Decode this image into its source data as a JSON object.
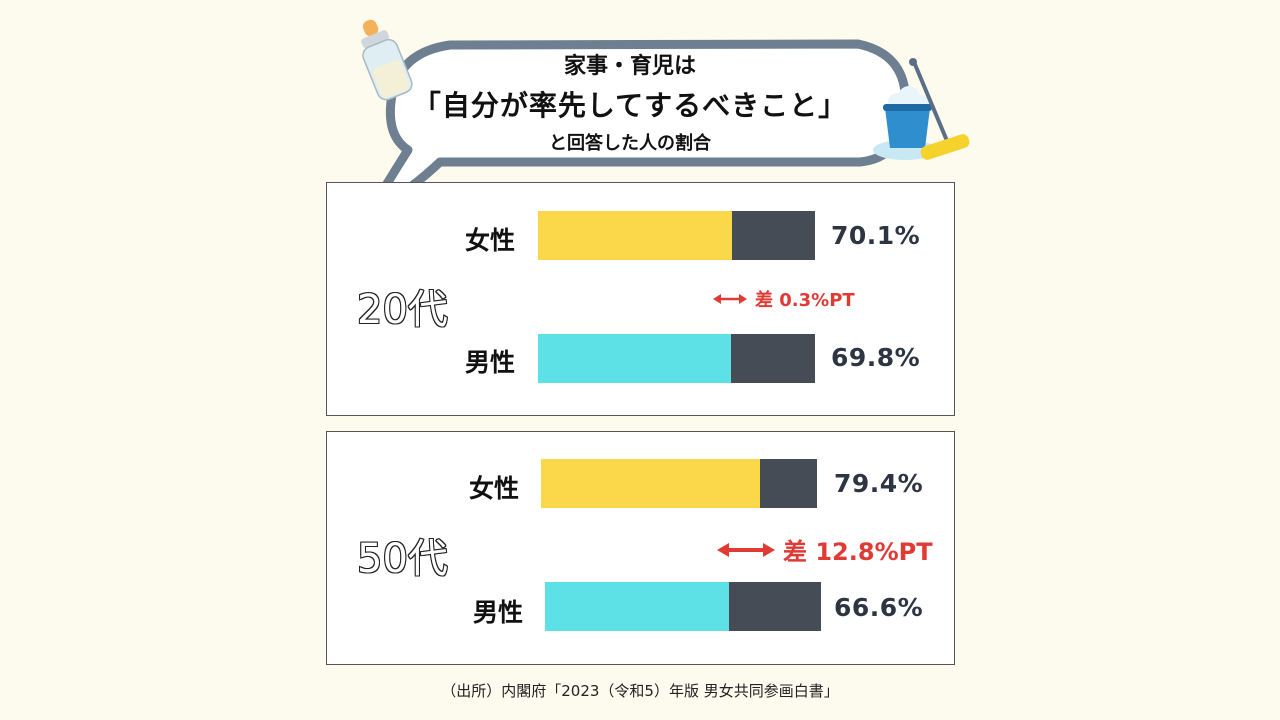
{
  "title": {
    "line1": "家事・育児は",
    "line2": "「自分が率先してするべきこと」",
    "line3": "と回答した人の割合"
  },
  "icons": [
    "baby-bottle-icon",
    "bucket-mop-icon",
    "double-arrow-icon"
  ],
  "colors": {
    "female": "#fbd84a",
    "male": "#5de0e6",
    "remainder": "#454c55",
    "difference": "#e03a35",
    "background": "#fdfbee"
  },
  "chart_data": [
    {
      "type": "bar",
      "group": "20代",
      "categories": [
        "女性",
        "男性"
      ],
      "values": [
        70.1,
        69.8
      ],
      "value_labels": [
        "70.1%",
        "69.8%"
      ],
      "difference_label": "差 0.3%PT",
      "ylim": [
        0,
        100
      ]
    },
    {
      "type": "bar",
      "group": "50代",
      "categories": [
        "女性",
        "男性"
      ],
      "values": [
        79.4,
        66.6
      ],
      "value_labels": [
        "79.4%",
        "66.6%"
      ],
      "difference_label": "差 12.8%PT",
      "ylim": [
        0,
        100
      ]
    }
  ],
  "source": "（出所）内閣府「2023（令和5）年版 男女共同参画白書」"
}
